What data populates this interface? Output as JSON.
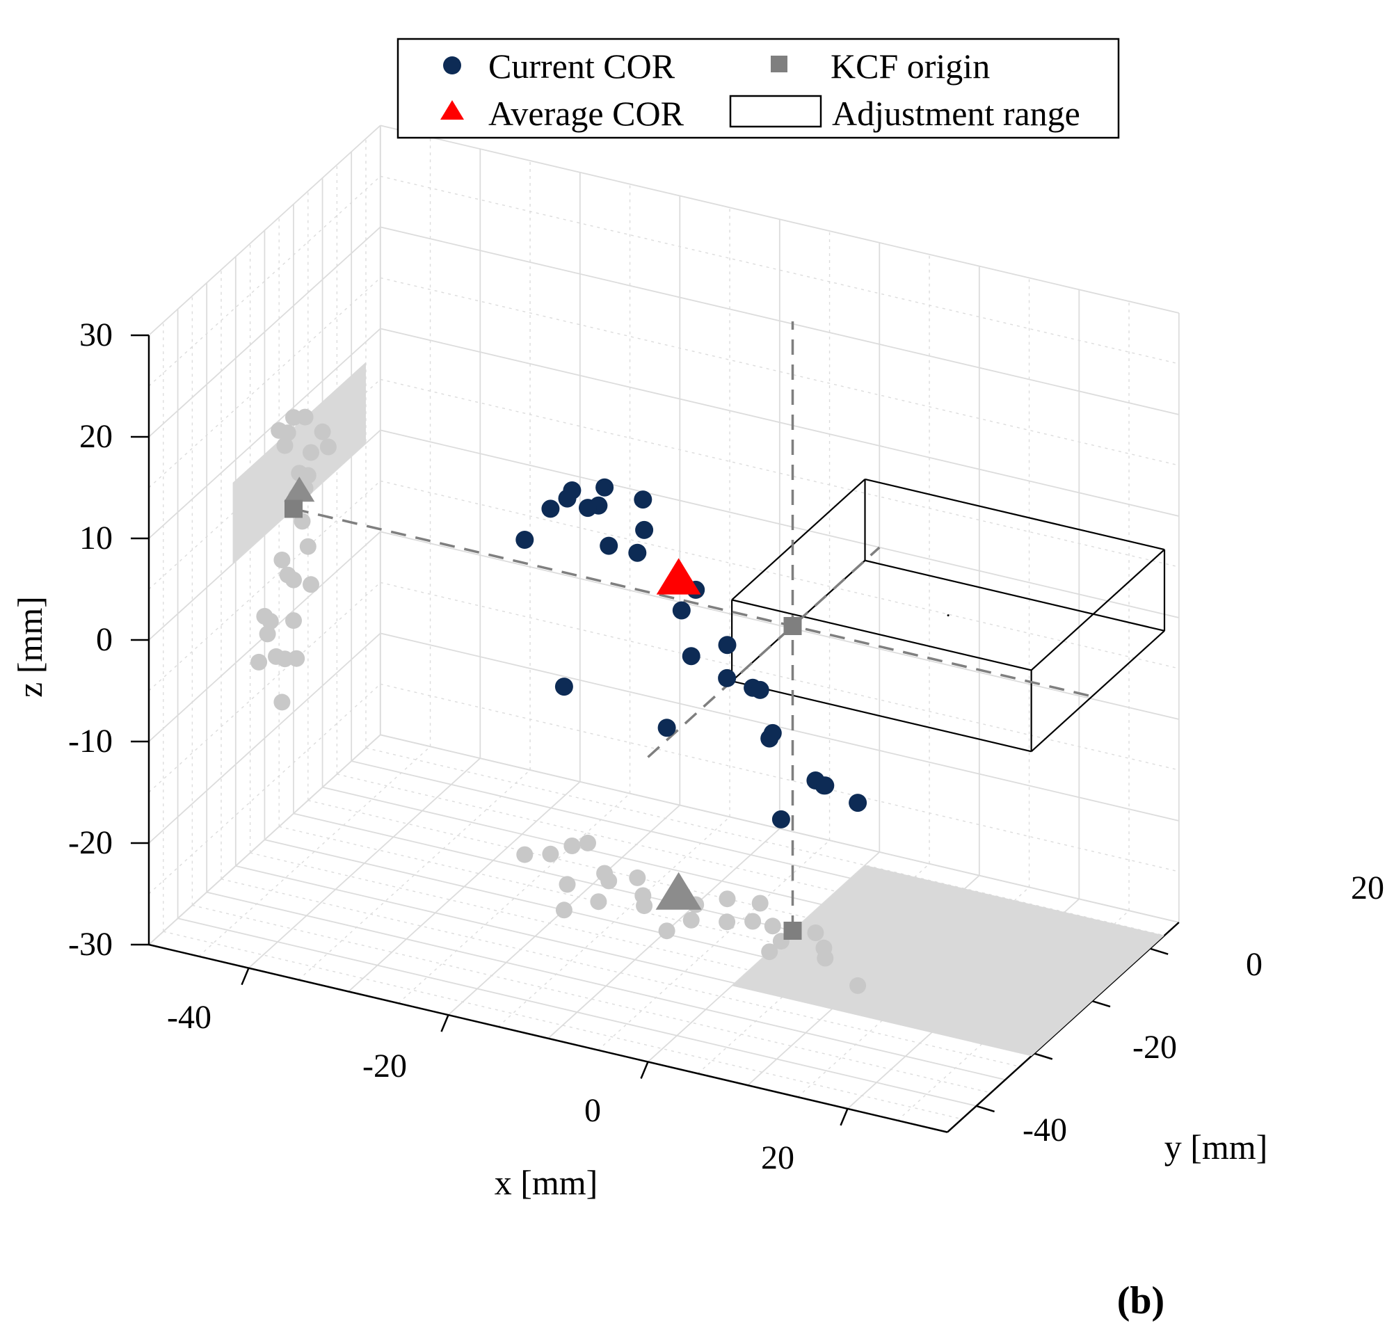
{
  "panel_label": "(b)",
  "chart_data": {
    "type": "scatter3d",
    "xlabel": "x [mm]",
    "ylabel": "y [mm]",
    "zlabel": "z [mm]",
    "xlim": [
      -50,
      30
    ],
    "ylim": [
      -50,
      30
    ],
    "zlim": [
      -30,
      30
    ],
    "x_ticks": [
      "-40",
      "-20",
      "0",
      "20"
    ],
    "y_ticks": [
      "20",
      "0",
      "-20",
      "-40"
    ],
    "z_ticks": [
      "30",
      "20",
      "10",
      "0",
      "-10",
      "-20",
      "-30"
    ],
    "grid": true,
    "legend_position": "top",
    "legend": {
      "current_cor": "Current COR",
      "kcf_origin": "KCF origin",
      "average_cor": "Average COR",
      "adjustment_range": "Adjustment range"
    },
    "colors": {
      "current_cor": "#0d2b55",
      "average_cor": "#ff0000",
      "kcf_origin": "#7f7f7f",
      "projection": "#c8c8c8",
      "projection_marker": "#8c8c8c",
      "range_box": "#000000",
      "range_shadow": "#d9d9d9",
      "grid": "#dcdcdc"
    },
    "current_cor": [
      [
        -18,
        -5,
        9
      ],
      [
        -15,
        0,
        9
      ],
      [
        -20,
        4,
        8
      ],
      [
        -14,
        -3,
        7
      ],
      [
        -22,
        -2,
        8
      ],
      [
        -25,
        10,
        5
      ],
      [
        -24,
        12,
        3
      ],
      [
        -26,
        6,
        4
      ],
      [
        -19,
        2,
        3
      ],
      [
        -17,
        5,
        2
      ],
      [
        -28,
        4,
        1
      ],
      [
        -10,
        1,
        1
      ],
      [
        -12,
        3,
        -2
      ],
      [
        -9,
        -4,
        -4
      ],
      [
        -8,
        5,
        -5
      ],
      [
        -6,
        -2,
        -6
      ],
      [
        -4,
        0,
        -7
      ],
      [
        -5,
        6,
        -9
      ],
      [
        0,
        -8,
        -9
      ],
      [
        -2,
        0,
        -11
      ],
      [
        -20,
        -10,
        -8
      ],
      [
        -10,
        -9,
        -10
      ],
      [
        4,
        -3,
        -14
      ],
      [
        2,
        1,
        -15
      ],
      [
        0,
        -4,
        -18
      ],
      [
        5,
        -6,
        -13
      ],
      [
        10,
        -12,
        -12
      ]
    ],
    "average_cor": [
      -12,
      2,
      1
    ],
    "kcf_origin": [
      0,
      0,
      0
    ]
  }
}
